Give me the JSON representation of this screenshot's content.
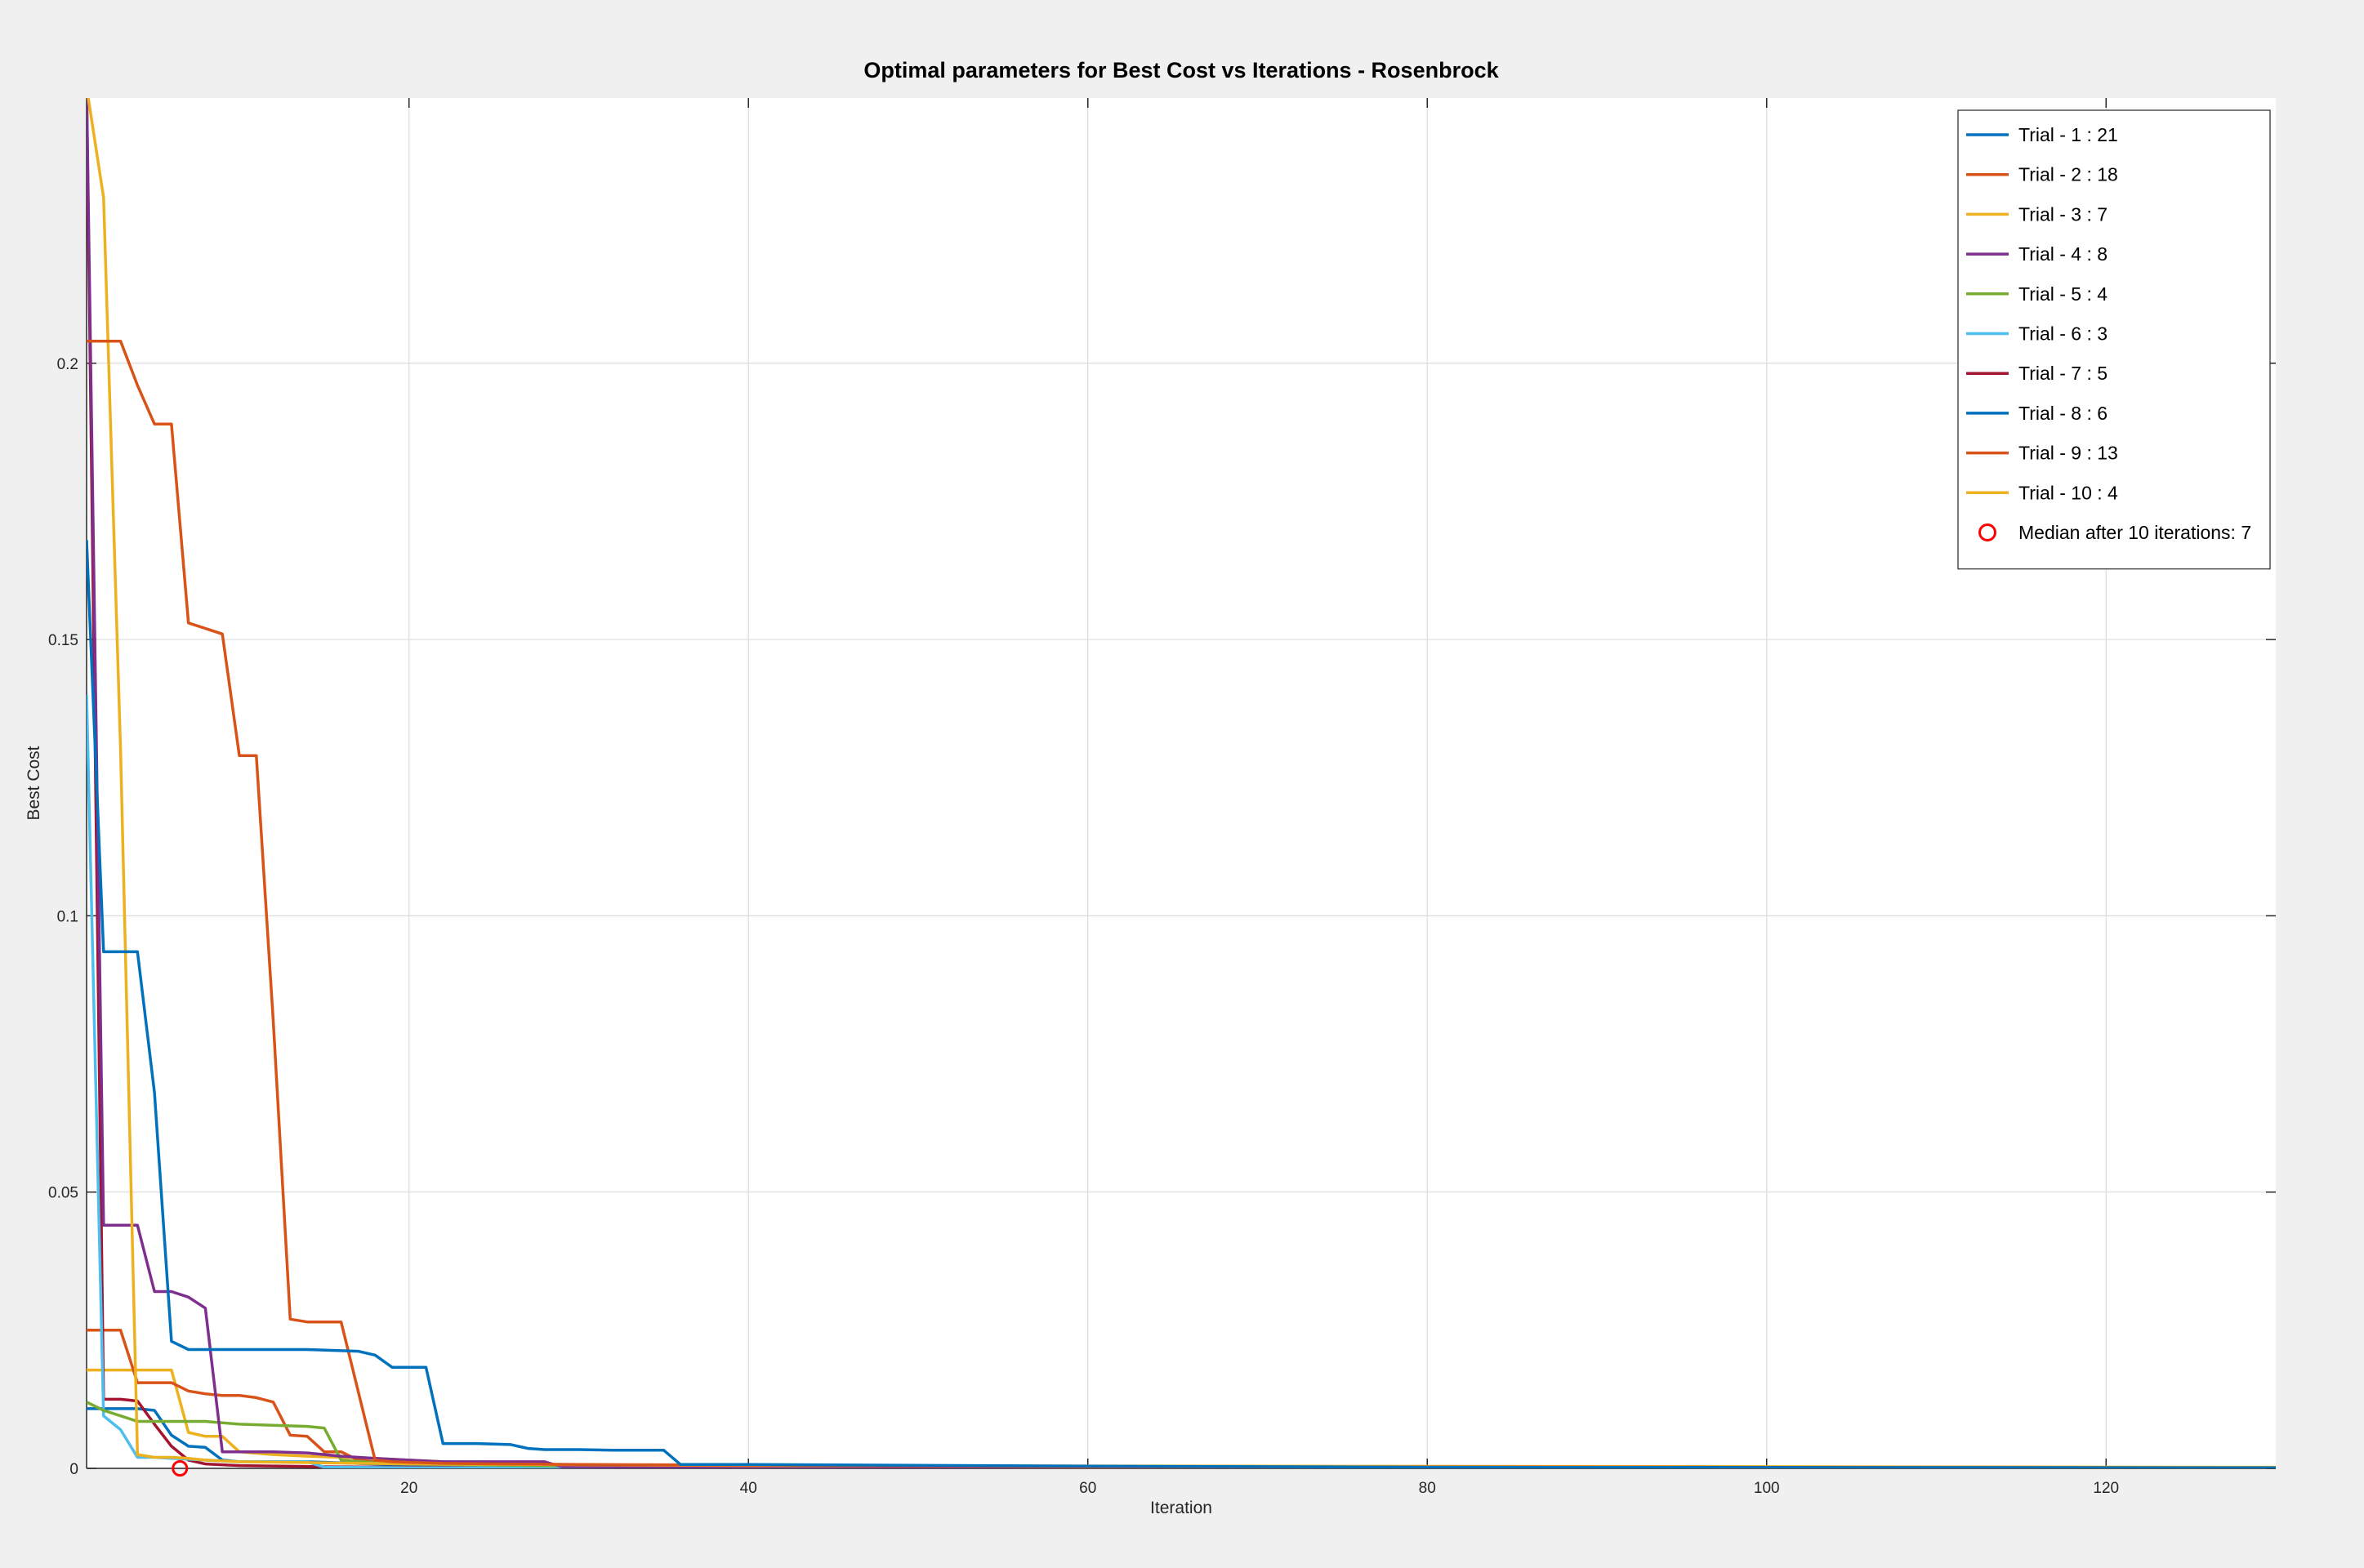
{
  "chart_data": {
    "type": "line",
    "title": "Optimal parameters for Best Cost vs Iterations - Rosenbrock",
    "xlabel": "Iteration",
    "ylabel": "Best Cost",
    "xlim": [
      1,
      130
    ],
    "ylim": [
      0,
      0.248
    ],
    "xticks": [
      20,
      40,
      60,
      80,
      100,
      120
    ],
    "yticks": [
      0,
      0.05,
      0.1,
      0.15,
      0.2
    ],
    "xtick_labels": [
      "20",
      "40",
      "60",
      "80",
      "100",
      "120"
    ],
    "ytick_labels": [
      "0",
      "0.05",
      "0.1",
      "0.15",
      "0.2"
    ],
    "grid": true,
    "legend_position": "top-right",
    "series": [
      {
        "name": "Trial - 1 : 21",
        "color": "#0072BD",
        "x": [
          1,
          2,
          3,
          4,
          5,
          6,
          7,
          8,
          10,
          12,
          14,
          16,
          17,
          18,
          19,
          20,
          21,
          22,
          24,
          26,
          27,
          28,
          30,
          32,
          34,
          35,
          36,
          40,
          60,
          80,
          130
        ],
        "y": [
          0.168,
          0.0935,
          0.0935,
          0.0935,
          0.068,
          0.023,
          0.0215,
          0.0215,
          0.0215,
          0.0215,
          0.0215,
          0.0213,
          0.0212,
          0.0205,
          0.0183,
          0.0183,
          0.0183,
          0.0045,
          0.0045,
          0.0043,
          0.0036,
          0.0034,
          0.0034,
          0.0033,
          0.0033,
          0.0033,
          0.0007,
          0.0007,
          0.0004,
          0.0002,
          0.0001
        ]
      },
      {
        "name": "Trial - 2 : 18",
        "color": "#D95319",
        "x": [
          1,
          2,
          3,
          4,
          5,
          6,
          7,
          8,
          9,
          10,
          11,
          12,
          13,
          14,
          16,
          17,
          18,
          19,
          22,
          30,
          40,
          60,
          130
        ],
        "y": [
          0.204,
          0.204,
          0.204,
          0.196,
          0.189,
          0.189,
          0.153,
          0.152,
          0.151,
          0.129,
          0.129,
          0.081,
          0.027,
          0.0265,
          0.0265,
          0.014,
          0.0015,
          0.0012,
          0.0009,
          0.0007,
          0.0006,
          0.0003,
          0.0001
        ]
      },
      {
        "name": "Trial - 3 : 7",
        "color": "#EDB120",
        "x": [
          1,
          2,
          3,
          4,
          5,
          6,
          7,
          8,
          10,
          15,
          20,
          40,
          130
        ],
        "y": [
          0.25,
          0.23,
          0.13,
          0.0025,
          0.002,
          0.002,
          0.0018,
          0.0015,
          0.0012,
          0.001,
          0.0008,
          0.0005,
          0.0002
        ]
      },
      {
        "name": "Trial - 4 : 8",
        "color": "#7E2F8E",
        "x": [
          1,
          2,
          3,
          4,
          5,
          6,
          7,
          8,
          9,
          10,
          12,
          14,
          16,
          18,
          20,
          22,
          24,
          26,
          28,
          29,
          40,
          130
        ],
        "y": [
          0.25,
          0.044,
          0.044,
          0.044,
          0.032,
          0.032,
          0.031,
          0.029,
          0.003,
          0.003,
          0.003,
          0.0028,
          0.0022,
          0.0018,
          0.0015,
          0.0012,
          0.0012,
          0.0012,
          0.0012,
          0.0003,
          0.0002,
          0.0001
        ]
      },
      {
        "name": "Trial - 5 : 4",
        "color": "#77AC30",
        "x": [
          1,
          2,
          3,
          4,
          6,
          8,
          10,
          12,
          14,
          15,
          16,
          18,
          20,
          30,
          130
        ],
        "y": [
          0.012,
          0.0105,
          0.0095,
          0.0085,
          0.0085,
          0.0085,
          0.008,
          0.0078,
          0.0076,
          0.0073,
          0.0015,
          0.001,
          0.0008,
          0.0004,
          0.0001
        ]
      },
      {
        "name": "Trial - 6 : 3",
        "color": "#4DBEEE",
        "x": [
          1,
          2,
          3,
          4,
          5,
          6,
          8,
          10,
          12,
          14,
          15,
          16,
          20,
          130
        ],
        "y": [
          0.14,
          0.0095,
          0.007,
          0.002,
          0.002,
          0.0018,
          0.0015,
          0.0012,
          0.0012,
          0.0012,
          0.0002,
          0.0002,
          0.0001,
          0.0
        ]
      },
      {
        "name": "Trial - 7 : 5",
        "color": "#A2142F",
        "x": [
          1,
          2,
          3,
          4,
          5,
          6,
          7,
          8,
          10,
          15,
          20,
          130
        ],
        "y": [
          0.25,
          0.0125,
          0.0125,
          0.0122,
          0.008,
          0.004,
          0.0015,
          0.0008,
          0.0005,
          0.0003,
          0.0002,
          0.0001
        ]
      },
      {
        "name": "Trial - 8 : 6",
        "color": "#0072BD",
        "x": [
          1,
          2,
          3,
          4,
          5,
          6,
          7,
          8,
          9,
          10,
          12,
          14,
          16,
          18,
          20,
          30,
          130
        ],
        "y": [
          0.0108,
          0.0108,
          0.0108,
          0.0108,
          0.0105,
          0.006,
          0.004,
          0.0038,
          0.0015,
          0.0012,
          0.0012,
          0.0012,
          0.001,
          0.0008,
          0.0005,
          0.0003,
          0.0001
        ]
      },
      {
        "name": "Trial - 9 : 13",
        "color": "#D95319",
        "x": [
          1,
          2,
          3,
          4,
          5,
          6,
          7,
          8,
          9,
          10,
          11,
          12,
          13,
          14,
          15,
          16,
          17,
          18,
          20,
          30,
          130
        ],
        "y": [
          0.025,
          0.025,
          0.025,
          0.0155,
          0.0155,
          0.0155,
          0.014,
          0.0135,
          0.0132,
          0.0132,
          0.0128,
          0.012,
          0.006,
          0.0058,
          0.003,
          0.003,
          0.0015,
          0.0012,
          0.0008,
          0.0004,
          0.0001
        ]
      },
      {
        "name": "Trial - 10 : 4",
        "color": "#EDB120",
        "x": [
          1,
          2,
          3,
          4,
          5,
          6,
          7,
          8,
          9,
          10,
          12,
          14,
          16,
          18,
          20,
          25,
          30,
          130
        ],
        "y": [
          0.0178,
          0.0178,
          0.0178,
          0.0178,
          0.0178,
          0.0178,
          0.0065,
          0.0058,
          0.0058,
          0.003,
          0.0025,
          0.0022,
          0.002,
          0.0018,
          0.0015,
          0.0008,
          0.0004,
          0.0001
        ]
      }
    ],
    "markers": [
      {
        "name": "Median after 10 iterations: 7",
        "color": "#FF0000",
        "shape": "circle",
        "x": 6.5,
        "y": 0
      }
    ]
  }
}
